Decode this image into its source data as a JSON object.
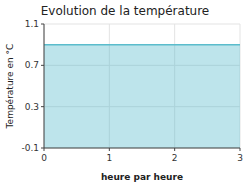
{
  "chart_data": {
    "type": "area",
    "title": "Evolution de la température",
    "xlabel": "heure par heure",
    "ylabel": "Température en °C",
    "x": [
      0,
      3
    ],
    "values": [
      0.9,
      0.9
    ],
    "color": "#5bbccc",
    "xlim": [
      0,
      3
    ],
    "xticks": [
      0,
      1,
      2,
      3
    ],
    "ylim": [
      -0.1,
      1.1
    ],
    "yticks": [
      -0.1,
      0.3,
      0.7,
      1.1
    ],
    "grid": true
  }
}
